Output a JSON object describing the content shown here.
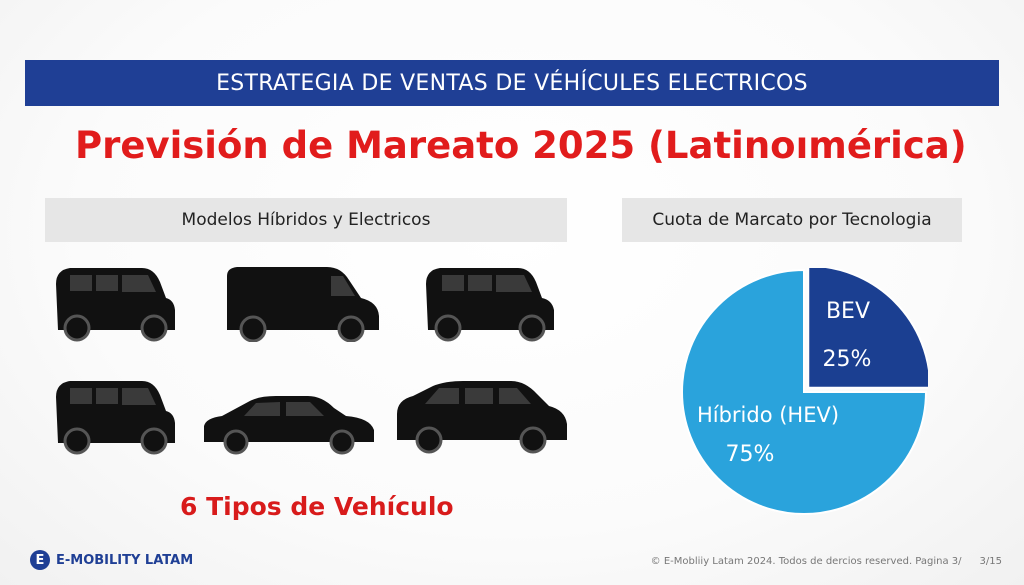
{
  "banner": {
    "title": "ESTRATEGIA DE VENTAS DE VÉHÍCULES ELECTRICOS"
  },
  "headline": "Previsión de Mareato 2025 (Latinoımérica)",
  "left_panel": {
    "title": "Modelos Híbridos y Electricos",
    "vehicles": [
      "minivan-icon",
      "cargo-van-icon",
      "minivan-icon",
      "minivan-icon",
      "sedan-icon",
      "suv-icon"
    ],
    "caption": "6 Tipos de Vehículo"
  },
  "right_panel": {
    "title": "Cuota de Marcato por Tecnologia"
  },
  "chart_data": {
    "type": "pie",
    "labels": [
      "BEV",
      "Híbrido (HEV)"
    ],
    "values": [
      25,
      75
    ],
    "value_labels": [
      "25%",
      "75%"
    ],
    "colors": [
      "#1b3f91",
      "#2aa3dc"
    ]
  },
  "footer": {
    "logo_letter": "E",
    "brand": "E-MOBILITY LATAM",
    "copyright": "© E-Mobliiy Latam 2024. Todos de dercios reserved.  Pagina 3/",
    "page": "3/15"
  }
}
